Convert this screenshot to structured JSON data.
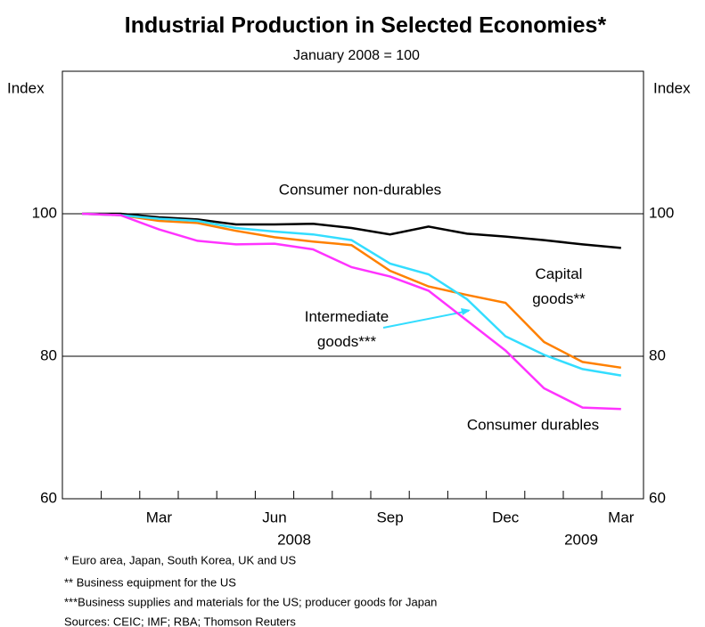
{
  "chart_data": {
    "type": "line",
    "title": "Industrial Production in Selected Economies*",
    "subtitle": "January 2008 = 100",
    "y_label": "Index",
    "y2_label": "Index",
    "categories": [
      null,
      null,
      "Mar",
      null,
      null,
      "Jun",
      null,
      null,
      "Sep",
      null,
      null,
      "Dec",
      null,
      null,
      "Mar"
    ],
    "years": [
      "2008",
      "2009"
    ],
    "ylim": [
      60,
      120
    ],
    "yticks": [
      60,
      80,
      100
    ],
    "series": [
      {
        "name": "Consumer non-durables",
        "color": "#000000",
        "values": [
          100,
          100,
          99.5,
          99.2,
          98.5,
          98.5,
          98.6,
          98.0,
          97.1,
          98.2,
          97.2,
          96.8,
          96.3,
          95.7,
          95.2
        ]
      },
      {
        "name": "Capital goods**",
        "color": "#ff8000",
        "values": [
          100,
          99.8,
          99.0,
          98.7,
          97.6,
          96.7,
          96.1,
          95.6,
          92.0,
          89.8,
          88.6,
          87.5,
          82.0,
          79.2,
          78.4
        ]
      },
      {
        "name": "Intermediate goods***",
        "color": "#33ddff",
        "values": [
          100,
          99.8,
          99.3,
          99.0,
          98.0,
          97.5,
          97.1,
          96.3,
          93.0,
          91.5,
          88.0,
          82.8,
          80.2,
          78.2,
          77.3
        ]
      },
      {
        "name": "Consumer durables",
        "color": "#ff33ff",
        "values": [
          100,
          99.8,
          97.8,
          96.2,
          95.7,
          95.8,
          95.0,
          92.5,
          91.2,
          89.2,
          85.0,
          80.8,
          75.5,
          72.8,
          72.6
        ]
      }
    ],
    "notes": [
      "*    Euro area, Japan, South Korea, UK and US",
      "**  Business equipment for the US",
      "***Business supplies and materials for the US; producer goods for Japan",
      "Sources: CEIC; IMF; RBA; Thomson Reuters"
    ]
  }
}
